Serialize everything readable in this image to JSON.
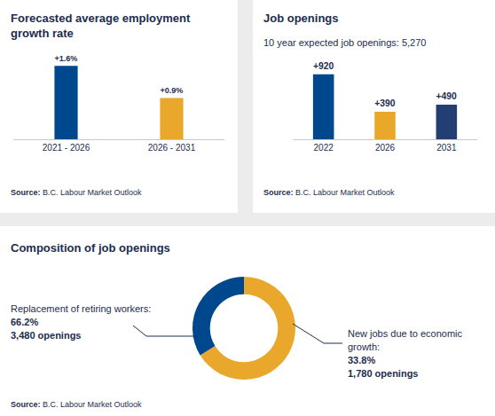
{
  "chart_data": [
    {
      "type": "bar",
      "title": "Forecasted average employment growth rate",
      "categories": [
        "2021 - 2026",
        "2026 - 2031"
      ],
      "values": [
        1.6,
        0.9
      ],
      "value_labels": [
        "+1.6%",
        "+0.9%"
      ],
      "colors": [
        "#00488e",
        "#e9a82b"
      ],
      "data_labels": true,
      "tick_labels": "x",
      "grid": false,
      "source": "Source: B.C. Labour Market Outlook"
    },
    {
      "type": "bar",
      "title": "Job openings",
      "subtitle": "10 year expected job openings: 5,270",
      "categories": [
        "2022",
        "2026",
        "2031"
      ],
      "values": [
        920,
        390,
        490
      ],
      "value_labels": [
        "+920",
        "+390",
        "+490"
      ],
      "colors": [
        "#00488e",
        "#e9a82b",
        "#233e73"
      ],
      "data_labels": true,
      "tick_labels": "x",
      "grid": false,
      "source": "Source: B.C. Labour Market Outlook"
    },
    {
      "type": "pie",
      "title": "Composition of job openings",
      "categories": [
        "Replacement of retiring workers:",
        "New jobs due to economic growth:"
      ],
      "values": [
        66.2,
        33.8
      ],
      "value_labels": [
        "66.2%",
        "33.8%"
      ],
      "openings_labels": [
        "3,480 openings",
        "1,780 openings"
      ],
      "colors": [
        "#e9a82b",
        "#00488e"
      ],
      "data_labels": true,
      "source": "Source: B.C. Labour Market Outlook"
    }
  ]
}
